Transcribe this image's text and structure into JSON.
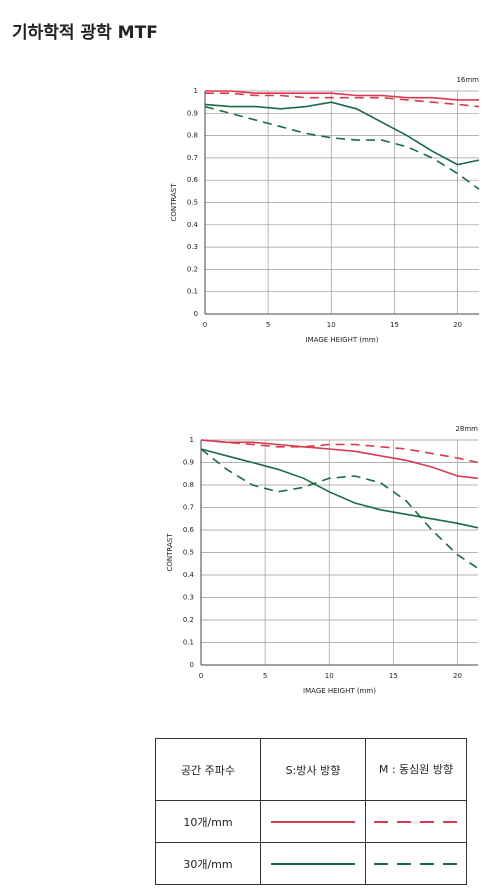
{
  "header": {
    "title": "기하학적 광학 MTF"
  },
  "chart_data": [
    {
      "type": "line",
      "title": "16mm",
      "xlabel": "IMAGE HEIGHT (mm)",
      "ylabel": "CONTRAST",
      "x": [
        0,
        2,
        4,
        6,
        8,
        10,
        12,
        14,
        16,
        18,
        20,
        21.7
      ],
      "xlim": [
        0,
        21.7
      ],
      "xticks": [
        0,
        5,
        10,
        15,
        20
      ],
      "ylim": [
        0,
        1
      ],
      "yticks": [
        0,
        0.1,
        0.2,
        0.3,
        0.4,
        0.5,
        0.6,
        0.7,
        0.8,
        0.9,
        1
      ],
      "grid": true,
      "series": [
        {
          "color": "#d93a4e",
          "dashed": false,
          "values": [
            1,
            1,
            0.99,
            0.99,
            0.99,
            0.99,
            0.98,
            0.98,
            0.97,
            0.97,
            0.96,
            0.96
          ]
        },
        {
          "color": "#d93a4e",
          "dashed": true,
          "values": [
            0.99,
            0.99,
            0.98,
            0.98,
            0.97,
            0.97,
            0.97,
            0.97,
            0.96,
            0.95,
            0.94,
            0.93
          ]
        },
        {
          "color": "#1b6b45",
          "dashed": false,
          "values": [
            0.94,
            0.93,
            0.93,
            0.92,
            0.93,
            0.95,
            0.92,
            0.86,
            0.8,
            0.73,
            0.67,
            0.69
          ]
        },
        {
          "color": "#1b6b45",
          "dashed": true,
          "values": [
            0.93,
            0.9,
            0.87,
            0.84,
            0.81,
            0.79,
            0.78,
            0.78,
            0.75,
            0.7,
            0.63,
            0.56
          ]
        }
      ]
    },
    {
      "type": "line",
      "title": "28mm",
      "xlabel": "IMAGE HEIGHT (mm)",
      "ylabel": "CONTRAST",
      "x": [
        0,
        2,
        4,
        6,
        8,
        10,
        12,
        14,
        16,
        18,
        20,
        21.6
      ],
      "xlim": [
        0,
        21.6
      ],
      "xticks": [
        0,
        5,
        10,
        15,
        20
      ],
      "ylim": [
        0,
        1
      ],
      "yticks": [
        0,
        0.1,
        0.2,
        0.3,
        0.4,
        0.5,
        0.6,
        0.7,
        0.8,
        0.9,
        1
      ],
      "grid": true,
      "series": [
        {
          "color": "#d93a4e",
          "dashed": false,
          "values": [
            1,
            0.99,
            0.99,
            0.98,
            0.97,
            0.96,
            0.95,
            0.93,
            0.91,
            0.88,
            0.84,
            0.83
          ]
        },
        {
          "color": "#d93a4e",
          "dashed": true,
          "values": [
            1,
            0.99,
            0.98,
            0.97,
            0.97,
            0.98,
            0.98,
            0.97,
            0.96,
            0.94,
            0.92,
            0.9
          ]
        },
        {
          "color": "#1b6b45",
          "dashed": false,
          "values": [
            0.96,
            0.93,
            0.9,
            0.87,
            0.83,
            0.77,
            0.72,
            0.69,
            0.67,
            0.65,
            0.63,
            0.61
          ]
        },
        {
          "color": "#1b6b45",
          "dashed": true,
          "values": [
            0.96,
            0.87,
            0.8,
            0.77,
            0.79,
            0.83,
            0.84,
            0.81,
            0.73,
            0.6,
            0.49,
            0.43
          ]
        }
      ]
    }
  ],
  "table": {
    "header": [
      "공간 주파수",
      "S:방사 방향",
      "M : 동심원 방향"
    ],
    "rows": [
      [
        "10개/mm"
      ],
      [
        "30개/mm"
      ]
    ]
  }
}
